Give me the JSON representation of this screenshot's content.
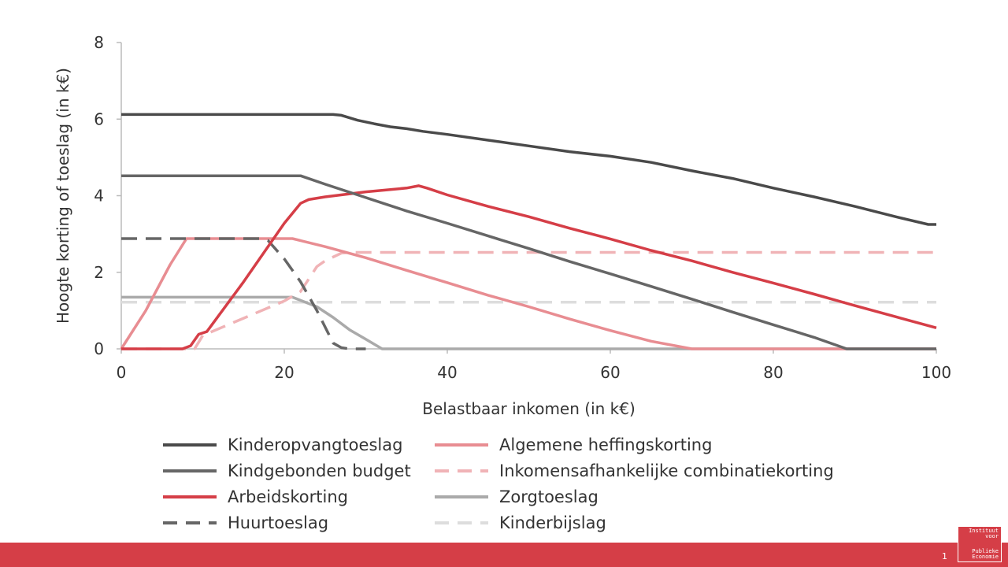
{
  "chart_data": {
    "type": "line",
    "title": "",
    "xlabel": "Belastbaar inkomen (in k€)",
    "ylabel": "Hoogte korting of toeslag (in k€)",
    "xlim": [
      0,
      100
    ],
    "ylim": [
      0,
      8
    ],
    "xticks": [
      0,
      20,
      40,
      60,
      80,
      100
    ],
    "yticks": [
      0,
      2,
      4,
      6,
      8
    ],
    "grid": false,
    "legend_position": "bottom",
    "series": [
      {
        "name": "Kinderopvangtoeslag",
        "color": "#4a4a4a",
        "dash": "solid",
        "x": [
          0,
          26,
          27,
          29,
          31,
          33,
          35,
          37,
          40,
          45,
          50,
          55,
          60,
          65,
          70,
          75,
          80,
          85,
          90,
          95,
          99,
          100
        ],
        "y": [
          6.12,
          6.12,
          6.1,
          5.97,
          5.88,
          5.8,
          5.75,
          5.68,
          5.6,
          5.45,
          5.3,
          5.15,
          5.03,
          4.87,
          4.65,
          4.45,
          4.2,
          3.97,
          3.72,
          3.45,
          3.25,
          3.25
        ]
      },
      {
        "name": "Kindgebonden budget",
        "color": "#666666",
        "dash": "solid",
        "x": [
          0,
          22,
          25,
          30,
          35,
          40,
          45,
          50,
          55,
          60,
          65,
          70,
          75,
          80,
          85,
          89,
          100
        ],
        "y": [
          4.52,
          4.52,
          4.3,
          3.95,
          3.6,
          3.28,
          2.95,
          2.62,
          2.28,
          1.96,
          1.63,
          1.3,
          0.96,
          0.63,
          0.3,
          0.0,
          0.0
        ]
      },
      {
        "name": "Arbeidskorting",
        "color": "#d53e47",
        "dash": "solid",
        "x": [
          0,
          7.5,
          8.5,
          9.5,
          10.5,
          15,
          20,
          22,
          23,
          25,
          30,
          35,
          36.5,
          37.5,
          40,
          45,
          50,
          55,
          60,
          65,
          70,
          75,
          80,
          85,
          90,
          95,
          100
        ],
        "y": [
          0.0,
          0.0,
          0.08,
          0.38,
          0.45,
          1.75,
          3.28,
          3.8,
          3.9,
          3.97,
          4.1,
          4.2,
          4.26,
          4.2,
          4.02,
          3.72,
          3.45,
          3.15,
          2.87,
          2.57,
          2.3,
          2.0,
          1.72,
          1.43,
          1.13,
          0.84,
          0.55
        ]
      },
      {
        "name": "Huurtoeslag",
        "color": "#666666",
        "dash": "dashed",
        "x": [
          0,
          17,
          18,
          20,
          22,
          24,
          26,
          27,
          28,
          30
        ],
        "y": [
          2.88,
          2.88,
          2.83,
          2.35,
          1.75,
          1.0,
          0.15,
          0.03,
          0.0,
          0.0
        ]
      },
      {
        "name": "Algemene heffingskorting",
        "color": "#e88d92",
        "dash": "solid",
        "x": [
          0,
          3,
          6,
          8,
          21,
          25,
          30,
          35,
          40,
          45,
          50,
          55,
          60,
          65,
          70,
          100
        ],
        "y": [
          0.0,
          1.0,
          2.2,
          2.88,
          2.88,
          2.67,
          2.38,
          2.05,
          1.73,
          1.4,
          1.1,
          0.78,
          0.48,
          0.2,
          0.0,
          0.0
        ]
      },
      {
        "name": "Inkomensafhankelijke combinatiekorting",
        "color": "#f0b3b6",
        "dash": "dashed",
        "x": [
          0,
          9,
          10,
          15,
          20,
          22,
          24,
          25,
          27,
          28,
          30,
          100
        ],
        "y": [
          0.0,
          0.0,
          0.35,
          0.8,
          1.25,
          1.5,
          2.15,
          2.3,
          2.5,
          2.52,
          2.52,
          2.52
        ]
      },
      {
        "name": "Zorgtoeslag",
        "color": "#aaaaaa",
        "dash": "solid",
        "x": [
          0,
          21,
          24,
          26,
          28,
          30,
          32,
          100
        ],
        "y": [
          1.35,
          1.35,
          1.1,
          0.82,
          0.5,
          0.25,
          0.0,
          0.0
        ]
      },
      {
        "name": "Kinderbijslag",
        "color": "#dddddd",
        "dash": "dashed",
        "x": [
          0,
          100
        ],
        "y": [
          1.22,
          1.22
        ]
      }
    ],
    "legend_order": [
      "Kinderopvangtoeslag",
      "Algemene heffingskorting",
      "Kindgebonden budget",
      "Inkomensafhankelijke combinatiekorting",
      "Arbeidskorting",
      "Zorgtoeslag",
      "Huurtoeslag",
      "Kinderbijslag"
    ]
  },
  "footer": {
    "page_number": "1",
    "logo_top": "Instituut\nvoor",
    "logo_bottom": "Publieke\nEconomie",
    "bar_color": "#d53e47"
  }
}
